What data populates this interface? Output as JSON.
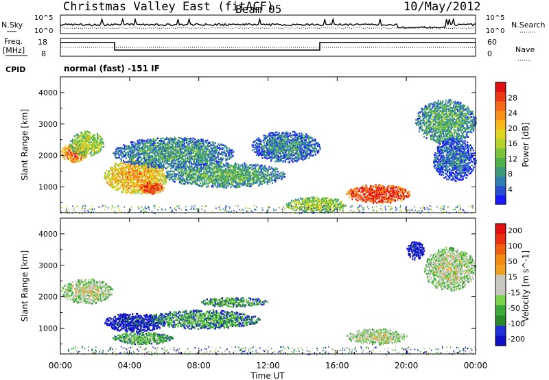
{
  "header": {
    "title": "Christmas Valley East (fitACF)",
    "beam": "Beam 05",
    "date": "10/May/2012"
  },
  "noise_panel": {
    "left_label": "N.Sky",
    "right_label": "N.Search",
    "tick_top": "10^5",
    "tick_bottom": "10^0"
  },
  "freq_panel": {
    "left_label_1": "Freq.",
    "left_label_2": "[MHz]",
    "right_label": "Nave",
    "left_ticks": [
      "18",
      "8"
    ],
    "right_ticks": [
      "60",
      "0"
    ]
  },
  "cpid": {
    "label": "CPID",
    "text": "normal (fast) -151 IF"
  },
  "chart_data": [
    {
      "type": "heatmap",
      "quantity": "Power",
      "ylabel": "Slant Range [km]",
      "ylim": [
        180,
        4500
      ],
      "y_ticks": [
        1000,
        2000,
        3000,
        4000
      ],
      "xlim": [
        0,
        24
      ],
      "colorbar": {
        "label": "Power [dB]",
        "range": [
          0,
          32
        ],
        "ticks": [
          4,
          8,
          12,
          16,
          20,
          24,
          28
        ],
        "colors": [
          "#1a1aff",
          "#2a4ed0",
          "#2f7fb0",
          "#3a9a7a",
          "#4fb04a",
          "#7cc43a",
          "#b6d42c",
          "#e0d520",
          "#f5b818",
          "#f7911a",
          "#f56a18",
          "#ee3a14",
          "#e01010"
        ]
      },
      "features": [
        {
          "t0": 0.0,
          "t1": 1.5,
          "r0": 1800,
          "r1": 2400,
          "level": 0.8
        },
        {
          "t0": 0.5,
          "t1": 2.5,
          "r0": 2000,
          "r1": 2800,
          "level": 0.5
        },
        {
          "t0": 2.5,
          "t1": 6.2,
          "r0": 800,
          "r1": 1900,
          "level": 0.7
        },
        {
          "t0": 4.5,
          "t1": 6.0,
          "r0": 800,
          "r1": 1200,
          "level": 0.9
        },
        {
          "t0": 3.0,
          "t1": 10.0,
          "r0": 1600,
          "r1": 2600,
          "level": 0.3
        },
        {
          "t0": 6.0,
          "t1": 13.0,
          "r0": 1000,
          "r1": 1800,
          "level": 0.35
        },
        {
          "t0": 11.0,
          "t1": 15.0,
          "r0": 1800,
          "r1": 2800,
          "level": 0.25
        },
        {
          "t0": 13.0,
          "t1": 16.5,
          "r0": 200,
          "r1": 700,
          "level": 0.5
        },
        {
          "t0": 16.5,
          "t1": 20.2,
          "r0": 500,
          "r1": 1100,
          "level": 0.95
        },
        {
          "t0": 20.5,
          "t1": 24.0,
          "r0": 2400,
          "r1": 3800,
          "level": 0.35
        },
        {
          "t0": 21.5,
          "t1": 24.0,
          "r0": 1200,
          "r1": 2600,
          "level": 0.2
        }
      ]
    },
    {
      "type": "heatmap",
      "quantity": "Velocity",
      "ylabel": "Slant Range [km]",
      "ylim": [
        180,
        4500
      ],
      "y_ticks": [
        1000,
        2000,
        3000,
        4000
      ],
      "xlabel": "Time UT",
      "xlim": [
        0,
        24
      ],
      "x_ticks": [
        "00:00",
        "04:00",
        "08:00",
        "12:00",
        "16:00",
        "20:00",
        "00:00"
      ],
      "colorbar": {
        "label": "Velocity [m s^-1]",
        "range": [
          -250,
          250
        ],
        "tick_labels": [
          "200",
          "100",
          "50",
          "15",
          "-15",
          "-50",
          "-100",
          "-200"
        ],
        "colors": [
          "#1010c8",
          "#2030d8",
          "#2a8a2a",
          "#3aaa3a",
          "#7ad24a",
          "#c8c8c0",
          "#c8c8c0",
          "#f0a020",
          "#f08a10",
          "#ee6010",
          "#e83010",
          "#e01010"
        ]
      },
      "features": [
        {
          "t0": 0.0,
          "t1": 3.0,
          "r0": 1800,
          "r1": 2600,
          "level": 0.5
        },
        {
          "t0": 2.5,
          "t1": 6.0,
          "r0": 900,
          "r1": 1500,
          "level": 0.1
        },
        {
          "t0": 5.0,
          "t1": 11.5,
          "r0": 1000,
          "r1": 1600,
          "level": 0.3
        },
        {
          "t0": 8.0,
          "t1": 12.0,
          "r0": 1700,
          "r1": 2000,
          "level": 0.35
        },
        {
          "t0": 3.0,
          "t1": 6.5,
          "r0": 500,
          "r1": 900,
          "level": 0.35
        },
        {
          "t0": 16.5,
          "t1": 20.0,
          "r0": 500,
          "r1": 1000,
          "level": 0.5
        },
        {
          "t0": 20.0,
          "t1": 21.0,
          "r0": 3200,
          "r1": 3800,
          "level": 0.05
        },
        {
          "t0": 21.0,
          "t1": 24.0,
          "r0": 2200,
          "r1": 3600,
          "level": 0.5
        }
      ]
    }
  ]
}
